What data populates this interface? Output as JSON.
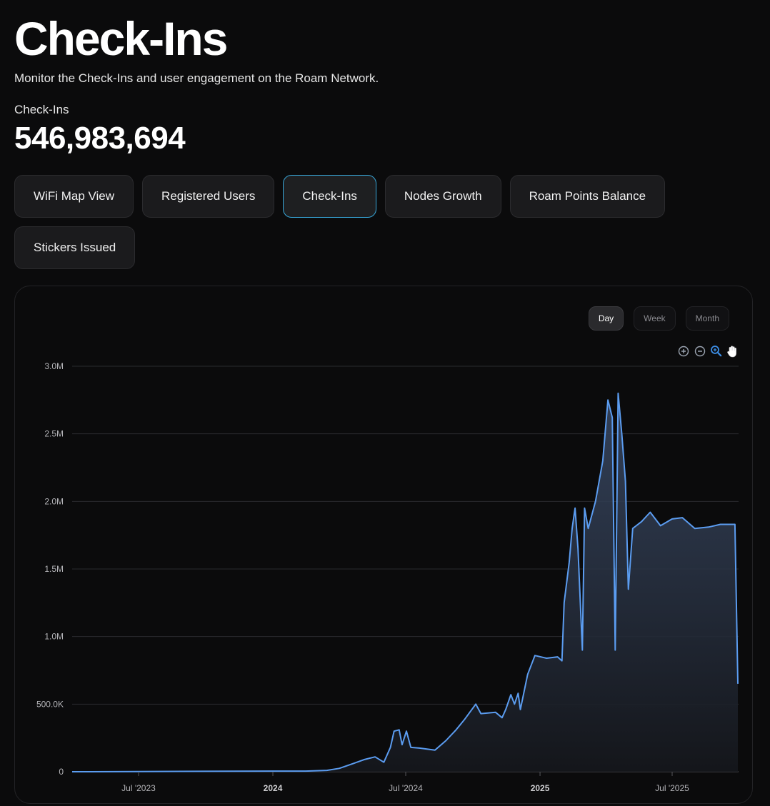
{
  "header": {
    "title": "Check-Ins",
    "subtitle": "Monitor the Check-Ins and user engagement on the Roam Network."
  },
  "stat": {
    "label": "Check-Ins",
    "value": "546,983,694"
  },
  "tabs": [
    {
      "label": "WiFi Map View",
      "active": false
    },
    {
      "label": "Registered Users",
      "active": false
    },
    {
      "label": "Check-Ins",
      "active": true
    },
    {
      "label": "Nodes Growth",
      "active": false
    },
    {
      "label": "Roam Points Balance",
      "active": false
    },
    {
      "label": "Stickers Issued",
      "active": false
    }
  ],
  "period_toggle": {
    "options": [
      "Day",
      "Week",
      "Month"
    ],
    "selected": "Day"
  },
  "toolbar": {
    "icons": [
      "zoom-in-icon",
      "zoom-out-icon",
      "magnifier-zoom-icon",
      "pan-hand-icon"
    ]
  },
  "colors": {
    "accent_tab_border": "#37a6d8",
    "line": "#5b9cf0"
  },
  "chart_data": {
    "type": "area",
    "title": "",
    "xlabel": "",
    "ylabel": "",
    "ylim": [
      0,
      3000000
    ],
    "y_ticks": [
      {
        "value": 0,
        "label": "0"
      },
      {
        "value": 500000,
        "label": "500.0K"
      },
      {
        "value": 1000000,
        "label": "1.0M"
      },
      {
        "value": 1500000,
        "label": "1.5M"
      },
      {
        "value": 2000000,
        "label": "2.0M"
      },
      {
        "value": 2500000,
        "label": "2.5M"
      },
      {
        "value": 3000000,
        "label": "3.0M"
      }
    ],
    "xlim": [
      "2023-04-01",
      "2025-09-30"
    ],
    "x_ticks": [
      {
        "date": "2023-07-01",
        "label": "Jul '2023",
        "bold": false
      },
      {
        "date": "2024-01-01",
        "label": "2024",
        "bold": true
      },
      {
        "date": "2024-07-01",
        "label": "Jul '2024",
        "bold": false
      },
      {
        "date": "2025-01-01",
        "label": "2025",
        "bold": true
      },
      {
        "date": "2025-07-01",
        "label": "Jul '2025",
        "bold": false
      }
    ],
    "grid": true,
    "series": [
      {
        "points": [
          [
            "2023-04-01",
            0
          ],
          [
            "2023-07-01",
            1000
          ],
          [
            "2023-10-01",
            3000
          ],
          [
            "2024-01-01",
            5000
          ],
          [
            "2024-02-15",
            5000
          ],
          [
            "2024-03-15",
            10000
          ],
          [
            "2024-04-01",
            25000
          ],
          [
            "2024-04-20",
            60000
          ],
          [
            "2024-05-05",
            90000
          ],
          [
            "2024-05-20",
            110000
          ],
          [
            "2024-06-01",
            70000
          ],
          [
            "2024-06-10",
            180000
          ],
          [
            "2024-06-15",
            300000
          ],
          [
            "2024-06-22",
            310000
          ],
          [
            "2024-06-26",
            200000
          ],
          [
            "2024-07-02",
            300000
          ],
          [
            "2024-07-08",
            180000
          ],
          [
            "2024-07-20",
            175000
          ],
          [
            "2024-08-10",
            160000
          ],
          [
            "2024-08-25",
            230000
          ],
          [
            "2024-09-08",
            310000
          ],
          [
            "2024-09-20",
            390000
          ],
          [
            "2024-10-05",
            500000
          ],
          [
            "2024-10-12",
            430000
          ],
          [
            "2024-11-01",
            440000
          ],
          [
            "2024-11-10",
            400000
          ],
          [
            "2024-11-15",
            460000
          ],
          [
            "2024-11-22",
            570000
          ],
          [
            "2024-11-27",
            500000
          ],
          [
            "2024-12-02",
            580000
          ],
          [
            "2024-12-05",
            460000
          ],
          [
            "2024-12-15",
            720000
          ],
          [
            "2024-12-25",
            860000
          ],
          [
            "2025-01-10",
            840000
          ],
          [
            "2025-01-25",
            850000
          ],
          [
            "2025-01-31",
            820000
          ],
          [
            "2025-02-03",
            1250000
          ],
          [
            "2025-02-10",
            1550000
          ],
          [
            "2025-02-14",
            1800000
          ],
          [
            "2025-02-18",
            1950000
          ],
          [
            "2025-02-22",
            1650000
          ],
          [
            "2025-02-28",
            900000
          ],
          [
            "2025-03-03",
            1950000
          ],
          [
            "2025-03-08",
            1800000
          ],
          [
            "2025-03-18",
            2000000
          ],
          [
            "2025-03-28",
            2300000
          ],
          [
            "2025-04-04",
            2750000
          ],
          [
            "2025-04-10",
            2620000
          ],
          [
            "2025-04-14",
            900000
          ],
          [
            "2025-04-18",
            2800000
          ],
          [
            "2025-04-23",
            2500000
          ],
          [
            "2025-04-28",
            2150000
          ],
          [
            "2025-05-02",
            1350000
          ],
          [
            "2025-05-08",
            1800000
          ],
          [
            "2025-05-20",
            1850000
          ],
          [
            "2025-06-01",
            1920000
          ],
          [
            "2025-06-15",
            1820000
          ],
          [
            "2025-07-01",
            1870000
          ],
          [
            "2025-07-15",
            1880000
          ],
          [
            "2025-08-01",
            1800000
          ],
          [
            "2025-08-20",
            1810000
          ],
          [
            "2025-09-05",
            1830000
          ],
          [
            "2025-09-25",
            1830000
          ],
          [
            "2025-09-29",
            650000
          ]
        ]
      }
    ]
  }
}
